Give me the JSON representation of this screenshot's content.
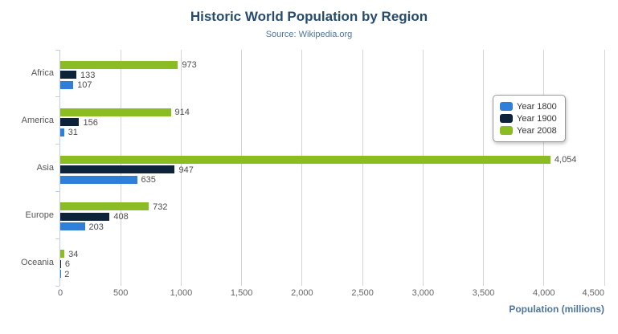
{
  "header": {
    "title": "Historic World Population by Region",
    "subtitle": "Source: Wikipedia.org",
    "menu_icon": "hamburger-menu"
  },
  "colors": {
    "series_1800": "#2f7ed8",
    "series_1900": "#0d233a",
    "series_2008": "#8bbc21",
    "title": "#274b6d",
    "subtitle": "#4d759e",
    "axis_title": "#4d759e",
    "gridline": "#d4d4d4",
    "axis_line": "#c0d0e0"
  },
  "chart_data": {
    "type": "bar",
    "title": "Historic World Population by Region",
    "subtitle": "Source: Wikipedia.org",
    "categories": [
      "Africa",
      "America",
      "Asia",
      "Europe",
      "Oceania"
    ],
    "series": [
      {
        "name": "Year 1800",
        "color": "#2f7ed8",
        "values": [
          107,
          31,
          635,
          203,
          2
        ]
      },
      {
        "name": "Year 1900",
        "color": "#0d233a",
        "values": [
          133,
          156,
          947,
          408,
          6
        ]
      },
      {
        "name": "Year 2008",
        "color": "#8bbc21",
        "values": [
          973,
          914,
          4054,
          732,
          34
        ]
      }
    ],
    "bar_order_top_to_bottom": [
      "Year 2008",
      "Year 1900",
      "Year 1800"
    ],
    "data_labels": true,
    "xlabel": "Population (millions)",
    "ylabel": "",
    "xlim": [
      0,
      4500
    ],
    "xticks": [
      0,
      500,
      1000,
      1500,
      2000,
      2500,
      3000,
      3500,
      4000,
      4500
    ],
    "grid": true,
    "legend_position": "right-middle"
  }
}
